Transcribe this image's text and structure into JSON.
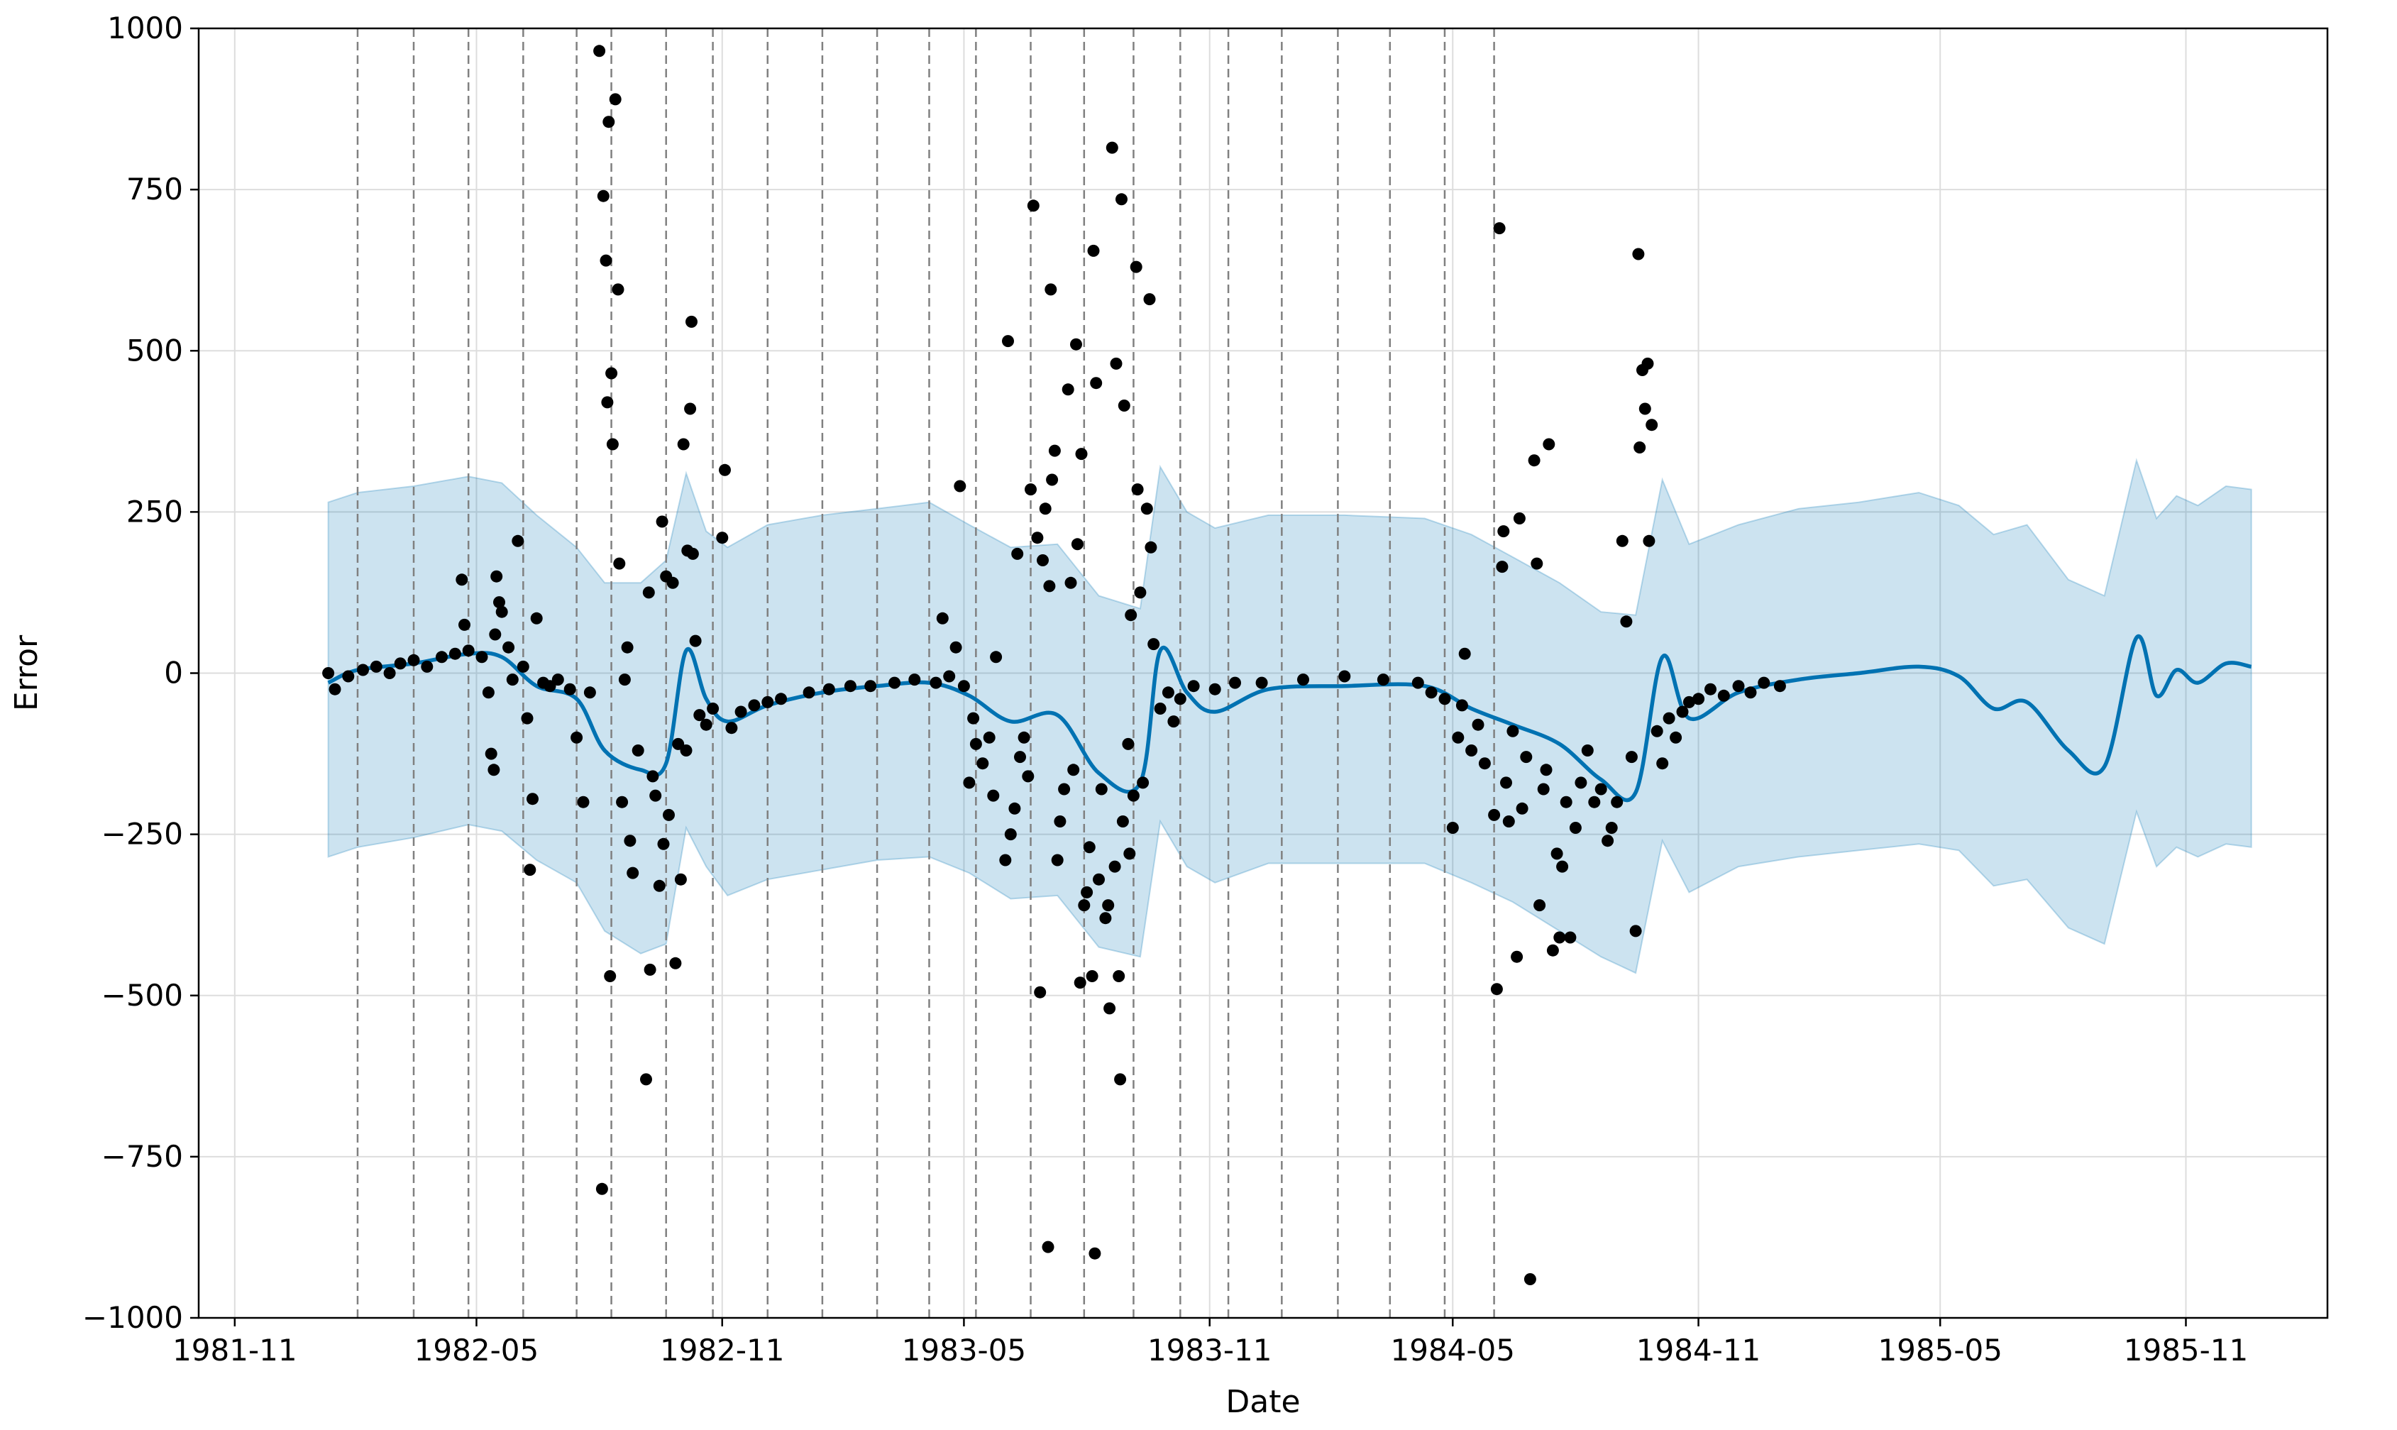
{
  "chart_data": {
    "type": "scatter",
    "xlabel": "Date",
    "ylabel": "Error",
    "ylim": [
      -1000,
      1000
    ],
    "xlim": [
      "1981-10-05",
      "1986-02-15"
    ],
    "x_ticks": [
      {
        "date": "1981-11-01",
        "label": "1981-11"
      },
      {
        "date": "1982-05-01",
        "label": "1982-05"
      },
      {
        "date": "1982-11-01",
        "label": "1982-11"
      },
      {
        "date": "1983-05-01",
        "label": "1983-05"
      },
      {
        "date": "1983-11-01",
        "label": "1983-11"
      },
      {
        "date": "1984-05-01",
        "label": "1984-05"
      },
      {
        "date": "1984-11-01",
        "label": "1984-11"
      },
      {
        "date": "1985-05-01",
        "label": "1985-05"
      },
      {
        "date": "1985-11-01",
        "label": "1985-11"
      }
    ],
    "y_ticks": [
      {
        "value": 1000,
        "label": "1000"
      },
      {
        "value": 750,
        "label": "750"
      },
      {
        "value": 500,
        "label": "500"
      },
      {
        "value": 250,
        "label": "250"
      },
      {
        "value": 0,
        "label": "0"
      },
      {
        "value": -250,
        "label": "−250"
      },
      {
        "value": -500,
        "label": "−500"
      },
      {
        "value": -750,
        "label": "−750"
      },
      {
        "value": -1000,
        "label": "−1000"
      }
    ],
    "grid": true,
    "colors": {
      "forecast": "#0072B2",
      "band": "#0072B2",
      "points": "#000000",
      "changepoints": "#808080",
      "grid": "#dddddd"
    },
    "changepoints": [
      "1982-02-01",
      "1982-03-15",
      "1982-04-25",
      "1982-06-05",
      "1982-07-15",
      "1982-08-10",
      "1982-09-20",
      "1982-10-25",
      "1982-12-05",
      "1983-01-15",
      "1983-02-25",
      "1983-04-05",
      "1983-05-10",
      "1983-06-20",
      "1983-07-30",
      "1983-09-05",
      "1983-10-10",
      "1983-11-15",
      "1983-12-25",
      "1984-02-05",
      "1984-03-15",
      "1984-04-25",
      "1984-06-01"
    ],
    "forecast": [
      {
        "x": "1982-01-10",
        "y": -15,
        "lower": -285,
        "upper": 265
      },
      {
        "x": "1982-02-01",
        "y": 5,
        "lower": -270,
        "upper": 280
      },
      {
        "x": "1982-03-15",
        "y": 15,
        "lower": -255,
        "upper": 290
      },
      {
        "x": "1982-04-25",
        "y": 30,
        "lower": -235,
        "upper": 305
      },
      {
        "x": "1982-05-20",
        "y": 25,
        "lower": -245,
        "upper": 295
      },
      {
        "x": "1982-06-15",
        "y": -20,
        "lower": -290,
        "upper": 245
      },
      {
        "x": "1982-07-15",
        "y": -40,
        "lower": -325,
        "upper": 195
      },
      {
        "x": "1982-08-05",
        "y": -120,
        "lower": -400,
        "upper": 140
      },
      {
        "x": "1982-09-01",
        "y": -150,
        "lower": -435,
        "upper": 140
      },
      {
        "x": "1982-09-20",
        "y": -140,
        "lower": -420,
        "upper": 175
      },
      {
        "x": "1982-10-05",
        "y": 35,
        "lower": -240,
        "upper": 310
      },
      {
        "x": "1982-10-20",
        "y": -40,
        "lower": -300,
        "upper": 220
      },
      {
        "x": "1982-11-05",
        "y": -75,
        "lower": -345,
        "upper": 195
      },
      {
        "x": "1982-12-05",
        "y": -50,
        "lower": -320,
        "upper": 230
      },
      {
        "x": "1983-01-15",
        "y": -30,
        "lower": -305,
        "upper": 245
      },
      {
        "x": "1983-02-25",
        "y": -20,
        "lower": -290,
        "upper": 255
      },
      {
        "x": "1983-04-05",
        "y": -15,
        "lower": -285,
        "upper": 265
      },
      {
        "x": "1983-05-05",
        "y": -35,
        "lower": -310,
        "upper": 230
      },
      {
        "x": "1983-06-05",
        "y": -75,
        "lower": -350,
        "upper": 195
      },
      {
        "x": "1983-07-10",
        "y": -65,
        "lower": -345,
        "upper": 200
      },
      {
        "x": "1983-08-10",
        "y": -155,
        "lower": -425,
        "upper": 120
      },
      {
        "x": "1983-09-10",
        "y": -170,
        "lower": -440,
        "upper": 100
      },
      {
        "x": "1983-09-25",
        "y": 35,
        "lower": -230,
        "upper": 320
      },
      {
        "x": "1983-10-15",
        "y": -30,
        "lower": -300,
        "upper": 250
      },
      {
        "x": "1983-11-05",
        "y": -60,
        "lower": -325,
        "upper": 225
      },
      {
        "x": "1983-12-15",
        "y": -25,
        "lower": -295,
        "upper": 245
      },
      {
        "x": "1984-02-10",
        "y": -20,
        "lower": -295,
        "upper": 245
      },
      {
        "x": "1984-04-10",
        "y": -20,
        "lower": -295,
        "upper": 240
      },
      {
        "x": "1984-05-15",
        "y": -55,
        "lower": -325,
        "upper": 215
      },
      {
        "x": "1984-06-15",
        "y": -80,
        "lower": -355,
        "upper": 180
      },
      {
        "x": "1984-07-20",
        "y": -110,
        "lower": -400,
        "upper": 140
      },
      {
        "x": "1984-08-20",
        "y": -165,
        "lower": -440,
        "upper": 95
      },
      {
        "x": "1984-09-15",
        "y": -185,
        "lower": -465,
        "upper": 90
      },
      {
        "x": "1984-10-05",
        "y": 25,
        "lower": -260,
        "upper": 300
      },
      {
        "x": "1984-10-25",
        "y": -70,
        "lower": -340,
        "upper": 200
      },
      {
        "x": "1984-12-01",
        "y": -30,
        "lower": -300,
        "upper": 230
      },
      {
        "x": "1985-01-15",
        "y": -10,
        "lower": -285,
        "upper": 255
      },
      {
        "x": "1985-03-01",
        "y": 0,
        "lower": -275,
        "upper": 265
      },
      {
        "x": "1985-04-15",
        "y": 10,
        "lower": -265,
        "upper": 280
      },
      {
        "x": "1985-05-15",
        "y": -5,
        "lower": -275,
        "upper": 260
      },
      {
        "x": "1985-06-10",
        "y": -55,
        "lower": -330,
        "upper": 215
      },
      {
        "x": "1985-07-05",
        "y": -45,
        "lower": -320,
        "upper": 230
      },
      {
        "x": "1985-08-05",
        "y": -120,
        "lower": -395,
        "upper": 145
      },
      {
        "x": "1985-09-01",
        "y": -145,
        "lower": -420,
        "upper": 120
      },
      {
        "x": "1985-09-25",
        "y": 55,
        "lower": -215,
        "upper": 330
      },
      {
        "x": "1985-10-10",
        "y": -35,
        "lower": -300,
        "upper": 240
      },
      {
        "x": "1985-10-25",
        "y": 5,
        "lower": -270,
        "upper": 275
      },
      {
        "x": "1985-11-10",
        "y": -15,
        "lower": -285,
        "upper": 260
      },
      {
        "x": "1985-12-01",
        "y": 15,
        "lower": -265,
        "upper": 290
      },
      {
        "x": "1985-12-20",
        "y": 10,
        "lower": -270,
        "upper": 285
      }
    ],
    "points": [
      [
        "1982-01-10",
        0
      ],
      [
        "1982-01-15",
        -25
      ],
      [
        "1982-01-25",
        -5
      ],
      [
        "1982-02-05",
        5
      ],
      [
        "1982-02-15",
        10
      ],
      [
        "1982-02-25",
        0
      ],
      [
        "1982-03-05",
        15
      ],
      [
        "1982-03-15",
        20
      ],
      [
        "1982-03-25",
        10
      ],
      [
        "1982-04-05",
        25
      ],
      [
        "1982-04-15",
        30
      ],
      [
        "1982-04-20",
        145
      ],
      [
        "1982-04-22",
        75
      ],
      [
        "1982-04-25",
        35
      ],
      [
        "1982-05-05",
        25
      ],
      [
        "1982-05-10",
        -30
      ],
      [
        "1982-05-12",
        -125
      ],
      [
        "1982-05-14",
        -150
      ],
      [
        "1982-05-15",
        60
      ],
      [
        "1982-05-16",
        150
      ],
      [
        "1982-05-18",
        110
      ],
      [
        "1982-05-20",
        95
      ],
      [
        "1982-05-25",
        40
      ],
      [
        "1982-05-28",
        -10
      ],
      [
        "1982-06-01",
        205
      ],
      [
        "1982-06-05",
        10
      ],
      [
        "1982-06-08",
        -70
      ],
      [
        "1982-06-10",
        -305
      ],
      [
        "1982-06-12",
        -195
      ],
      [
        "1982-06-15",
        85
      ],
      [
        "1982-06-20",
        -15
      ],
      [
        "1982-06-25",
        -20
      ],
      [
        "1982-07-01",
        -10
      ],
      [
        "1982-07-10",
        -25
      ],
      [
        "1982-07-15",
        -100
      ],
      [
        "1982-07-20",
        -200
      ],
      [
        "1982-07-25",
        -30
      ],
      [
        "1982-08-01",
        965
      ],
      [
        "1982-08-03",
        -800
      ],
      [
        "1982-08-04",
        740
      ],
      [
        "1982-08-06",
        640
      ],
      [
        "1982-08-07",
        420
      ],
      [
        "1982-08-08",
        855
      ],
      [
        "1982-08-09",
        -470
      ],
      [
        "1982-08-10",
        465
      ],
      [
        "1982-08-11",
        355
      ],
      [
        "1982-08-13",
        890
      ],
      [
        "1982-08-15",
        595
      ],
      [
        "1982-08-16",
        170
      ],
      [
        "1982-08-18",
        -200
      ],
      [
        "1982-08-20",
        -10
      ],
      [
        "1982-08-22",
        40
      ],
      [
        "1982-08-24",
        -260
      ],
      [
        "1982-08-26",
        -310
      ],
      [
        "1982-08-30",
        -120
      ],
      [
        "1982-09-05",
        -630
      ],
      [
        "1982-09-07",
        125
      ],
      [
        "1982-09-08",
        -460
      ],
      [
        "1982-09-10",
        -160
      ],
      [
        "1982-09-12",
        -190
      ],
      [
        "1982-09-15",
        -330
      ],
      [
        "1982-09-17",
        235
      ],
      [
        "1982-09-18",
        -265
      ],
      [
        "1982-09-20",
        150
      ],
      [
        "1982-09-22",
        -220
      ],
      [
        "1982-09-25",
        140
      ],
      [
        "1982-09-27",
        -450
      ],
      [
        "1982-09-29",
        -110
      ],
      [
        "1982-10-01",
        -320
      ],
      [
        "1982-10-03",
        355
      ],
      [
        "1982-10-05",
        -120
      ],
      [
        "1982-10-06",
        190
      ],
      [
        "1982-10-08",
        410
      ],
      [
        "1982-10-09",
        545
      ],
      [
        "1982-10-10",
        185
      ],
      [
        "1982-10-12",
        50
      ],
      [
        "1982-10-15",
        -65
      ],
      [
        "1982-10-20",
        -80
      ],
      [
        "1982-10-25",
        -55
      ],
      [
        "1982-11-01",
        210
      ],
      [
        "1982-11-03",
        315
      ],
      [
        "1982-11-08",
        -85
      ],
      [
        "1982-11-15",
        -60
      ],
      [
        "1982-11-25",
        -50
      ],
      [
        "1982-12-05",
        -45
      ],
      [
        "1982-12-15",
        -40
      ],
      [
        "1983-01-05",
        -30
      ],
      [
        "1983-01-20",
        -25
      ],
      [
        "1983-02-05",
        -20
      ],
      [
        "1983-02-20",
        -20
      ],
      [
        "1983-03-10",
        -15
      ],
      [
        "1983-03-25",
        -10
      ],
      [
        "1983-04-10",
        -15
      ],
      [
        "1983-04-15",
        85
      ],
      [
        "1983-04-20",
        -5
      ],
      [
        "1983-04-25",
        40
      ],
      [
        "1983-04-28",
        290
      ],
      [
        "1983-05-01",
        -20
      ],
      [
        "1983-05-05",
        -170
      ],
      [
        "1983-05-08",
        -70
      ],
      [
        "1983-05-10",
        -110
      ],
      [
        "1983-05-15",
        -140
      ],
      [
        "1983-05-20",
        -100
      ],
      [
        "1983-05-23",
        -190
      ],
      [
        "1983-05-25",
        25
      ],
      [
        "1983-06-01",
        -290
      ],
      [
        "1983-06-03",
        515
      ],
      [
        "1983-06-05",
        -250
      ],
      [
        "1983-06-08",
        -210
      ],
      [
        "1983-06-10",
        185
      ],
      [
        "1983-06-12",
        -130
      ],
      [
        "1983-06-15",
        -100
      ],
      [
        "1983-06-18",
        -160
      ],
      [
        "1983-06-20",
        285
      ],
      [
        "1983-06-22",
        725
      ],
      [
        "1983-06-25",
        210
      ],
      [
        "1983-06-27",
        -495
      ],
      [
        "1983-06-29",
        175
      ],
      [
        "1983-07-01",
        255
      ],
      [
        "1983-07-03",
        -890
      ],
      [
        "1983-07-04",
        135
      ],
      [
        "1983-07-05",
        595
      ],
      [
        "1983-07-06",
        300
      ],
      [
        "1983-07-08",
        345
      ],
      [
        "1983-07-10",
        -290
      ],
      [
        "1983-07-12",
        -230
      ],
      [
        "1983-07-15",
        -180
      ],
      [
        "1983-07-18",
        440
      ],
      [
        "1983-07-20",
        140
      ],
      [
        "1983-07-22",
        -150
      ],
      [
        "1983-07-24",
        510
      ],
      [
        "1983-07-25",
        200
      ],
      [
        "1983-07-27",
        -480
      ],
      [
        "1983-07-28",
        340
      ],
      [
        "1983-07-30",
        -360
      ],
      [
        "1983-08-01",
        -340
      ],
      [
        "1983-08-03",
        -270
      ],
      [
        "1983-08-05",
        -470
      ],
      [
        "1983-08-06",
        655
      ],
      [
        "1983-08-07",
        -900
      ],
      [
        "1983-08-08",
        450
      ],
      [
        "1983-08-10",
        -320
      ],
      [
        "1983-08-12",
        -180
      ],
      [
        "1983-08-15",
        -380
      ],
      [
        "1983-08-17",
        -360
      ],
      [
        "1983-08-18",
        -520
      ],
      [
        "1983-08-20",
        815
      ],
      [
        "1983-08-22",
        -300
      ],
      [
        "1983-08-23",
        480
      ],
      [
        "1983-08-25",
        -470
      ],
      [
        "1983-08-26",
        -630
      ],
      [
        "1983-08-27",
        735
      ],
      [
        "1983-08-28",
        -230
      ],
      [
        "1983-08-29",
        415
      ],
      [
        "1983-09-01",
        -110
      ],
      [
        "1983-09-02",
        -280
      ],
      [
        "1983-09-03",
        90
      ],
      [
        "1983-09-05",
        -190
      ],
      [
        "1983-09-07",
        630
      ],
      [
        "1983-09-08",
        285
      ],
      [
        "1983-09-10",
        125
      ],
      [
        "1983-09-12",
        -170
      ],
      [
        "1983-09-15",
        255
      ],
      [
        "1983-09-17",
        580
      ],
      [
        "1983-09-18",
        195
      ],
      [
        "1983-09-20",
        45
      ],
      [
        "1983-09-25",
        -55
      ],
      [
        "1983-10-01",
        -30
      ],
      [
        "1983-10-05",
        -75
      ],
      [
        "1983-10-10",
        -40
      ],
      [
        "1983-10-20",
        -20
      ],
      [
        "1983-11-05",
        -25
      ],
      [
        "1983-11-20",
        -15
      ],
      [
        "1983-12-10",
        -15
      ],
      [
        "1984-01-10",
        -10
      ],
      [
        "1984-02-10",
        -5
      ],
      [
        "1984-03-10",
        -10
      ],
      [
        "1984-04-05",
        -15
      ],
      [
        "1984-04-15",
        -30
      ],
      [
        "1984-04-25",
        -40
      ],
      [
        "1984-05-01",
        -240
      ],
      [
        "1984-05-05",
        -100
      ],
      [
        "1984-05-08",
        -50
      ],
      [
        "1984-05-10",
        30
      ],
      [
        "1984-05-15",
        -120
      ],
      [
        "1984-05-20",
        -80
      ],
      [
        "1984-05-25",
        -140
      ],
      [
        "1984-06-01",
        -220
      ],
      [
        "1984-06-03",
        -490
      ],
      [
        "1984-06-05",
        690
      ],
      [
        "1984-06-07",
        165
      ],
      [
        "1984-06-08",
        220
      ],
      [
        "1984-06-10",
        -170
      ],
      [
        "1984-06-12",
        -230
      ],
      [
        "1984-06-15",
        -90
      ],
      [
        "1984-06-18",
        -440
      ],
      [
        "1984-06-20",
        240
      ],
      [
        "1984-06-22",
        -210
      ],
      [
        "1984-06-25",
        -130
      ],
      [
        "1984-06-28",
        -940
      ],
      [
        "1984-07-01",
        330
      ],
      [
        "1984-07-03",
        170
      ],
      [
        "1984-07-05",
        -360
      ],
      [
        "1984-07-08",
        -180
      ],
      [
        "1984-07-10",
        -150
      ],
      [
        "1984-07-12",
        355
      ],
      [
        "1984-07-15",
        -430
      ],
      [
        "1984-07-18",
        -280
      ],
      [
        "1984-07-20",
        -410
      ],
      [
        "1984-07-22",
        -300
      ],
      [
        "1984-07-25",
        -200
      ],
      [
        "1984-07-28",
        -410
      ],
      [
        "1984-08-01",
        -240
      ],
      [
        "1984-08-05",
        -170
      ],
      [
        "1984-08-10",
        -120
      ],
      [
        "1984-08-15",
        -200
      ],
      [
        "1984-08-20",
        -180
      ],
      [
        "1984-08-25",
        -260
      ],
      [
        "1984-08-28",
        -240
      ],
      [
        "1984-09-01",
        -200
      ],
      [
        "1984-09-05",
        205
      ],
      [
        "1984-09-08",
        80
      ],
      [
        "1984-09-12",
        -130
      ],
      [
        "1984-09-15",
        -400
      ],
      [
        "1984-09-17",
        650
      ],
      [
        "1984-09-18",
        350
      ],
      [
        "1984-09-20",
        470
      ],
      [
        "1984-09-22",
        410
      ],
      [
        "1984-09-24",
        480
      ],
      [
        "1984-09-25",
        205
      ],
      [
        "1984-09-27",
        385
      ],
      [
        "1984-10-01",
        -90
      ],
      [
        "1984-10-05",
        -140
      ],
      [
        "1984-10-10",
        -70
      ],
      [
        "1984-10-15",
        -100
      ],
      [
        "1984-10-20",
        -60
      ],
      [
        "1984-10-25",
        -45
      ],
      [
        "1984-11-01",
        -40
      ],
      [
        "1984-11-10",
        -25
      ],
      [
        "1984-11-20",
        -35
      ],
      [
        "1984-12-01",
        -20
      ],
      [
        "1984-12-10",
        -30
      ],
      [
        "1984-12-20",
        -15
      ],
      [
        "1985-01-01",
        -20
      ]
    ]
  }
}
